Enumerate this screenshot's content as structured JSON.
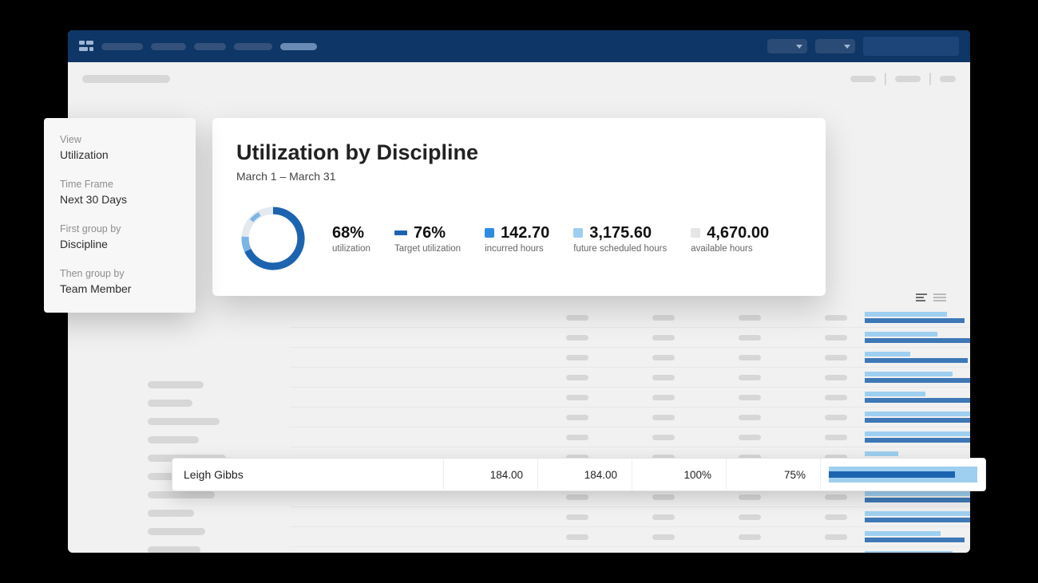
{
  "colors": {
    "topbar_bg": "#0e3666",
    "accent_dark": "#1d64b0",
    "accent_mid": "#4a90d9",
    "accent_light": "#9ecff0",
    "placeholder": "#d7d7d7",
    "placeholder_light": "#e8e8e8"
  },
  "sidebar": {
    "groups": [
      {
        "label": "View",
        "value": "Utilization"
      },
      {
        "label": "Time Frame",
        "value": "Next 30 Days"
      },
      {
        "label": "First group by",
        "value": "Discipline"
      },
      {
        "label": "Then group by",
        "value": "Team Member"
      }
    ]
  },
  "summary": {
    "title": "Utilization by Discipline",
    "date_range": "March 1 – March 31",
    "donut": {
      "utilization_pct": 68,
      "target_pct": 76,
      "ring_color_primary": "#1d64b0",
      "ring_color_secondary": "#7db4e6",
      "ring_bg": "#e3e9ef"
    },
    "metrics": [
      {
        "value": "68%",
        "label": "utilization",
        "swatch": null
      },
      {
        "value": "76%",
        "label": "Target utilization",
        "swatch": "#1d64b0",
        "swatch_shape": "bar"
      },
      {
        "value": "142.70",
        "label": "incurred hours",
        "swatch": "#2e8de0",
        "swatch_shape": "square"
      },
      {
        "value": "3,175.60",
        "label": "future scheduled hours",
        "swatch": "#9ecff0",
        "swatch_shape": "square"
      },
      {
        "value": "4,670.00",
        "label": "available hours",
        "swatch": "#e6e6e6",
        "swatch_shape": "square"
      }
    ]
  },
  "table": {
    "rows": [
      {
        "name_w": 70,
        "bars": {
          "top_color": "#9ecff0",
          "top_w": 54,
          "bot_color": "#3e78b6",
          "bot_w": 66
        }
      },
      {
        "name_w": 110,
        "bars": {
          "top_color": "#9ecff0",
          "top_w": 48,
          "bot_color": "#3e78b6",
          "bot_w": 72
        }
      },
      {
        "name_w": 95,
        "bars": {
          "top_color": "#9ecff0",
          "top_w": 30,
          "bot_color": "#3e78b6",
          "bot_w": 68
        }
      },
      {
        "name_w": 88,
        "bars": {
          "top_color": "#9ecff0",
          "top_w": 58,
          "bot_color": "#3e78b6",
          "bot_w": 90
        }
      },
      {
        "name_w": 105,
        "bars": {
          "top_color": "#9ecff0",
          "top_w": 40,
          "bot_color": "#3e78b6",
          "bot_w": 78
        }
      },
      {
        "name_w": 80,
        "bars": {
          "top_color": "#9ecff0",
          "top_w": 92,
          "bot_color": "#3e78b6",
          "bot_w": 70
        }
      },
      {
        "name_w": 92,
        "bars": {
          "top_color": "#9ecff0",
          "top_w": 88,
          "bot_color": "#3e78b6",
          "bot_w": 76
        }
      },
      {
        "name_w": 100,
        "bars": {
          "top_color": "#9ecff0",
          "top_w": 22,
          "bot_color": "#3e78b6",
          "bot_w": 84
        }
      },
      {
        "name_w": 78,
        "bars": {
          "top_color": "#9ecff0",
          "top_w": 96,
          "bot_color": "#3e78b6",
          "bot_w": 96
        }
      },
      {
        "name_w": 86,
        "bars": {
          "top_color": "#9ecff0",
          "top_w": 84,
          "bot_color": "#3e78b6",
          "bot_w": 70
        }
      },
      {
        "name_w": 94,
        "bars": {
          "top_color": "#9ecff0",
          "top_w": 72,
          "bot_color": "#3e78b6",
          "bot_w": 88
        }
      },
      {
        "name_w": 70,
        "bars": {
          "top_color": "#9ecff0",
          "top_w": 50,
          "bot_color": "#3e78b6",
          "bot_w": 66
        }
      },
      {
        "name_w": 102,
        "bars": {
          "top_color": "#9ecff0",
          "top_w": 58,
          "bot_color": "#3e78b6",
          "bot_w": 74
        }
      }
    ]
  },
  "highlight_row": {
    "name": "Leigh Gibbs",
    "col1": "184.00",
    "col2": "184.00",
    "col3": "100%",
    "col4": "75%",
    "bar": {
      "light_color": "#9ecff0",
      "light_w": 100,
      "dark_color": "#1d64b0",
      "dark_w": 85
    }
  },
  "side_skeleton_widths": [
    70,
    56,
    90,
    64,
    98,
    60,
    84,
    58,
    72,
    66
  ]
}
